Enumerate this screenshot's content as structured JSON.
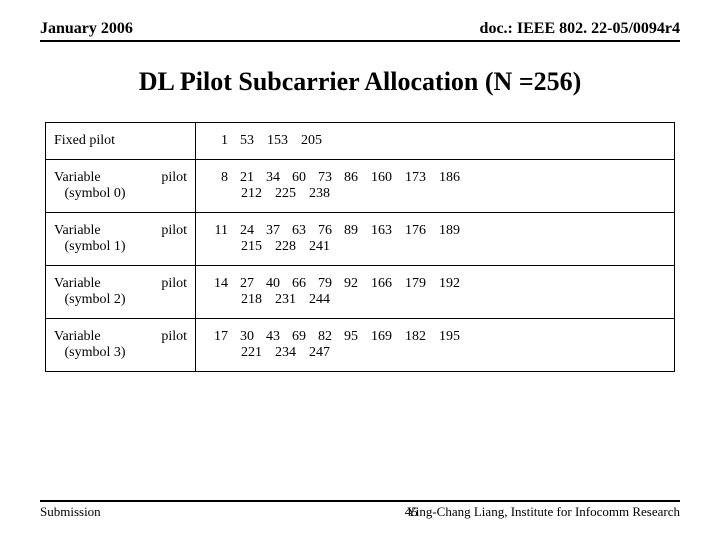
{
  "header": {
    "left": "January 2006",
    "right": "doc.: IEEE 802. 22-05/0094r4"
  },
  "title": "DL Pilot Subcarrier Allocation (N =256)",
  "table": {
    "rows": [
      {
        "label": "Fixed pilot",
        "multiline_label": false,
        "values": [
          1,
          53,
          153,
          205
        ]
      },
      {
        "label_l": "Variable",
        "label_r": "pilot",
        "label2": "(symbol 0)",
        "multiline_label": true,
        "values": [
          8,
          21,
          34,
          60,
          73,
          86,
          160,
          173,
          186,
          212,
          225,
          238
        ]
      },
      {
        "label_l": "Variable",
        "label_r": "pilot",
        "label2": "(symbol 1)",
        "multiline_label": true,
        "values": [
          11,
          24,
          37,
          63,
          76,
          89,
          163,
          176,
          189,
          215,
          228,
          241
        ]
      },
      {
        "label_l": "Variable",
        "label_r": "pilot",
        "label2": "(symbol 2)",
        "multiline_label": true,
        "values": [
          14,
          27,
          40,
          66,
          79,
          92,
          166,
          179,
          192,
          218,
          231,
          244
        ]
      },
      {
        "label_l": "Variable",
        "label_r": "pilot",
        "label2": "(symbol 3)",
        "multiline_label": true,
        "values": [
          17,
          30,
          43,
          69,
          82,
          95,
          169,
          182,
          195,
          221,
          234,
          247
        ]
      }
    ]
  },
  "footer": {
    "left": "Submission",
    "page": "45",
    "right": "Ying-Chang Liang, Institute for Infocomm Research"
  }
}
